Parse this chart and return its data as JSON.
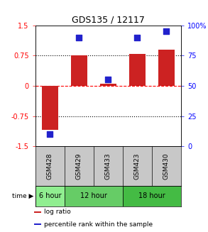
{
  "title": "GDS135 / 12117",
  "samples": [
    "GSM428",
    "GSM429",
    "GSM433",
    "GSM423",
    "GSM430"
  ],
  "log_ratio": [
    -1.1,
    0.75,
    0.05,
    0.8,
    0.9
  ],
  "percentile_rank": [
    10,
    90,
    55,
    90,
    95
  ],
  "ylim_left": [
    -1.5,
    1.5
  ],
  "ylim_right": [
    0,
    100
  ],
  "yticks_left": [
    -1.5,
    -0.75,
    0,
    0.75,
    1.5
  ],
  "yticks_right": [
    0,
    25,
    50,
    75,
    100
  ],
  "ytick_labels_left": [
    "-1.5",
    "-0.75",
    "0",
    "0.75",
    "1.5"
  ],
  "ytick_labels_right": [
    "0",
    "25",
    "50",
    "75",
    "100%"
  ],
  "hlines": [
    -0.75,
    0,
    0.75
  ],
  "hline_styles": [
    "dotted",
    "dashed",
    "dotted"
  ],
  "hline_colors": [
    "black",
    "red",
    "black"
  ],
  "time_groups": [
    {
      "label": "6 hour",
      "start": 0,
      "end": 1,
      "color": "#90EE90"
    },
    {
      "label": "12 hour",
      "start": 1,
      "end": 3,
      "color": "#66CC66"
    },
    {
      "label": "18 hour",
      "start": 3,
      "end": 5,
      "color": "#44BB44"
    }
  ],
  "bar_color": "#CC2222",
  "scatter_color": "#2222CC",
  "bar_width": 0.55,
  "scatter_size": 40,
  "legend_items": [
    {
      "color": "#CC2222",
      "label": "log ratio"
    },
    {
      "color": "#2222CC",
      "label": "percentile rank within the sample"
    }
  ],
  "sample_box_color": "#C8C8C8",
  "title_fontsize": 9,
  "tick_fontsize": 7,
  "label_fontsize": 6.5,
  "legend_fontsize": 6.5
}
